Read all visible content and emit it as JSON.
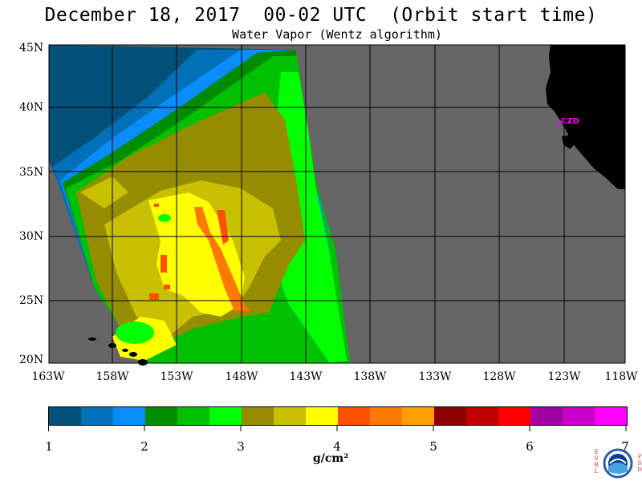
{
  "title": "December 18, 2017  00-02 UTC  (Orbit start time)",
  "subtitle": "Water Vapor (Wentz algorithm)",
  "map": {
    "lat_labels": [
      "45N",
      "40N",
      "35N",
      "30N",
      "25N",
      "20N"
    ],
    "lon_labels": [
      "163W",
      "158W",
      "153W",
      "148W",
      "143W",
      "138W",
      "133W",
      "128W",
      "123W",
      "118W"
    ],
    "station_label": "CZD",
    "colors": {
      "land": "#000000",
      "nodata": "#666666",
      "grid": "#000000",
      "station": "#ff00ff"
    }
  },
  "colorbar": {
    "tick_labels": [
      "1",
      "2",
      "3",
      "4",
      "5",
      "6",
      "7"
    ],
    "unit": "g/cm²",
    "colors": [
      "#00507a",
      "#0070b8",
      "#0a8cff",
      "#008c00",
      "#00c000",
      "#00ff00",
      "#968c00",
      "#c8c000",
      "#ffff00",
      "#ff5000",
      "#ff7800",
      "#ffa000",
      "#8c0000",
      "#c00000",
      "#ff0000",
      "#a000a0",
      "#c800c8",
      "#ff00ff"
    ]
  },
  "logo": {
    "left_letters": "ESRL",
    "right_letters": "PSD",
    "name": "NOAA"
  }
}
